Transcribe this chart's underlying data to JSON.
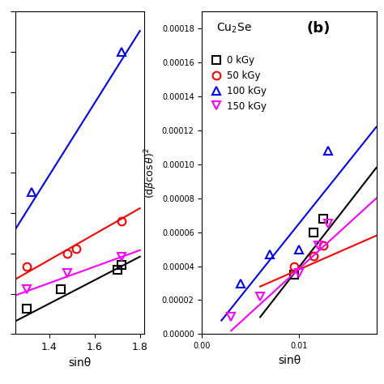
{
  "panel_a": {
    "xlim": [
      1.25,
      1.82
    ],
    "ylim": [
      0.0,
      0.0002
    ],
    "xticks": [
      1.4,
      1.6,
      1.8
    ],
    "series": [
      {
        "label": "0 kGy",
        "color": "black",
        "marker": "s",
        "x": [
          1.3,
          1.45,
          1.7,
          1.72
        ],
        "y": [
          1.6e-05,
          2.8e-05,
          4e-05,
          4.3e-05
        ],
        "fit_x": [
          1.25,
          1.8
        ],
        "fit_y": [
          8e-06,
          4.8e-05
        ]
      },
      {
        "label": "50 kGy",
        "color": "red",
        "marker": "o",
        "x": [
          1.3,
          1.48,
          1.52,
          1.72
        ],
        "y": [
          4.2e-05,
          5e-05,
          5.3e-05,
          7e-05
        ],
        "fit_x": [
          1.25,
          1.8
        ],
        "fit_y": [
          3.4e-05,
          7.8e-05
        ]
      },
      {
        "label": "100 kGy",
        "color": "blue",
        "marker": "^",
        "x": [
          1.32,
          1.72
        ],
        "y": [
          8.8e-05,
          0.000175
        ],
        "fit_x": [
          1.25,
          1.8
        ],
        "fit_y": [
          6.5e-05,
          0.000188
        ]
      },
      {
        "label": "150 kGy",
        "color": "magenta",
        "marker": "v",
        "x": [
          1.3,
          1.48,
          1.72
        ],
        "y": [
          2.8e-05,
          3.8e-05,
          4.8e-05
        ],
        "fit_x": [
          1.25,
          1.8
        ],
        "fit_y": [
          2.4e-05,
          5.2e-05
        ]
      }
    ]
  },
  "panel_b": {
    "xlim": [
      0.0,
      0.018
    ],
    "ylim": [
      0.0,
      0.00019
    ],
    "xticks": [
      0.0,
      0.01
    ],
    "yticks": [
      0.0,
      2e-05,
      4e-05,
      6e-05,
      8e-05,
      0.0001,
      0.00012,
      0.00014,
      0.00016,
      0.00018
    ],
    "series": [
      {
        "label": "0 kGy",
        "color": "black",
        "marker": "s",
        "x": [
          0.0095,
          0.0115,
          0.0125
        ],
        "y": [
          3.5e-05,
          6e-05,
          6.8e-05
        ],
        "fit_x": [
          0.006,
          0.018
        ],
        "fit_y": [
          1e-05,
          9.8e-05
        ]
      },
      {
        "label": "50 kGy",
        "color": "red",
        "marker": "o",
        "x": [
          0.0095,
          0.0115,
          0.0125
        ],
        "y": [
          4e-05,
          4.6e-05,
          5.2e-05
        ],
        "fit_x": [
          0.006,
          0.018
        ],
        "fit_y": [
          2.8e-05,
          5.8e-05
        ]
      },
      {
        "label": "100 kGy",
        "color": "blue",
        "marker": "^",
        "x": [
          0.004,
          0.007,
          0.01,
          0.013
        ],
        "y": [
          3e-05,
          4.7e-05,
          5e-05,
          0.000108
        ],
        "fit_x": [
          0.002,
          0.018
        ],
        "fit_y": [
          8e-06,
          0.000122
        ]
      },
      {
        "label": "150 kGy",
        "color": "magenta",
        "marker": "v",
        "x": [
          0.003,
          0.006,
          0.01,
          0.012,
          0.013
        ],
        "y": [
          1e-05,
          2.2e-05,
          3.6e-05,
          5.2e-05,
          6.5e-05
        ],
        "fit_x": [
          0.003,
          0.018
        ],
        "fit_y": [
          2e-06,
          8e-05
        ]
      }
    ]
  },
  "legend_labels": [
    "0 kGy",
    "50 kGy",
    "100 kGy",
    "150 kGy"
  ],
  "legend_colors": [
    "black",
    "red",
    "blue",
    "magenta"
  ],
  "legend_markers": [
    "s",
    "o",
    "^",
    "v"
  ],
  "xlabel": "sinθ",
  "ylabel": "(dβcosθ)²",
  "compound": "Cu₂Se",
  "panel_b_label": "(b)"
}
